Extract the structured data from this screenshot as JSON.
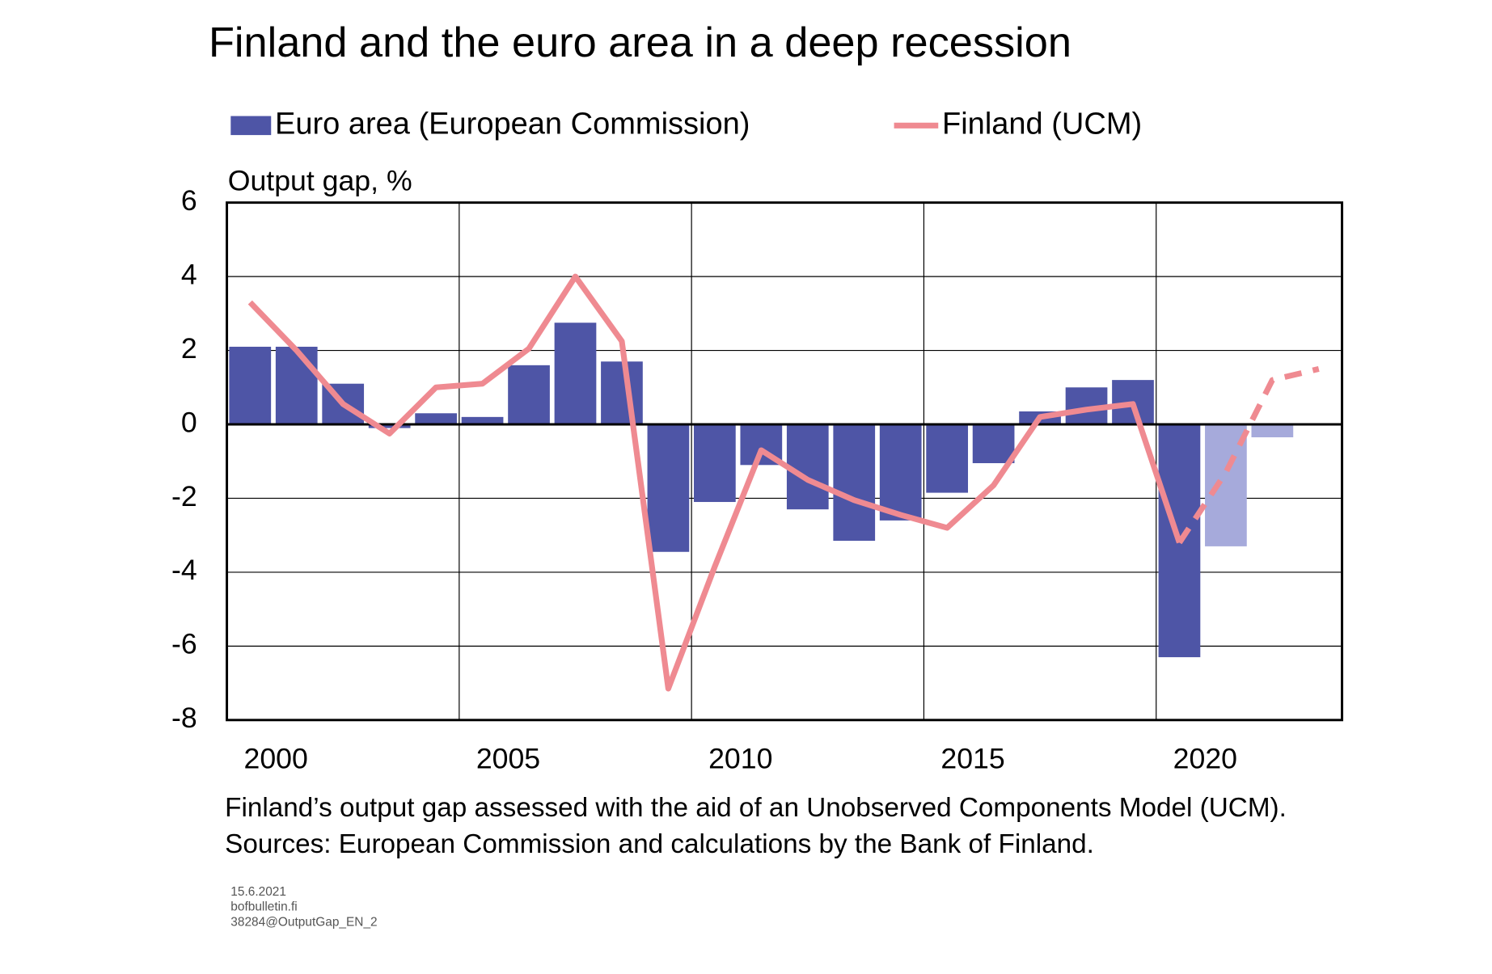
{
  "chart_data": {
    "type": "bar-line",
    "title": "Finland and the euro area in a deep recession",
    "y_label": "Output gap, %",
    "categories": [
      "2000",
      null,
      null,
      null,
      null,
      "2005",
      null,
      null,
      null,
      null,
      "2010",
      null,
      null,
      null,
      null,
      "2015",
      null,
      null,
      null,
      null,
      "2020",
      null,
      null,
      null
    ],
    "ylim": [
      -8,
      6
    ],
    "yticks": [
      -8,
      -6,
      -4,
      -2,
      0,
      2,
      4,
      6
    ],
    "grid": true,
    "forecast_start_index": 21,
    "series": [
      {
        "name": "Euro area (European Commission)",
        "type": "bar",
        "color": "#4e55a6",
        "forecast_color": "#a6aadb",
        "values": [
          2.1,
          2.1,
          1.1,
          -0.1,
          0.3,
          0.2,
          1.6,
          2.75,
          1.7,
          -3.45,
          -2.1,
          -1.1,
          -2.3,
          -3.15,
          -2.6,
          -1.85,
          -1.05,
          0.35,
          1.0,
          1.2,
          -6.3,
          -3.3,
          -0.35,
          null
        ]
      },
      {
        "name": "Finland (UCM)",
        "type": "line",
        "color": "#ef8a91",
        "values": [
          3.3,
          2.0,
          0.55,
          -0.25,
          1.0,
          1.1,
          2.05,
          4.0,
          2.25,
          -7.15,
          -3.85,
          -0.7,
          -1.5,
          -2.05,
          -2.45,
          -2.8,
          -1.65,
          0.2,
          0.4,
          0.55,
          -3.2,
          -1.3,
          1.2,
          1.5
        ]
      }
    ],
    "notes": [
      "Finland’s output gap assessed with the aid of an Unobserved Components Model (UCM).",
      "Sources: European Commission and calculations by the Bank of Finland."
    ],
    "footer": [
      "15.6.2021",
      "bofbulletin.fi",
      "38284@OutputGap_EN_2"
    ]
  }
}
